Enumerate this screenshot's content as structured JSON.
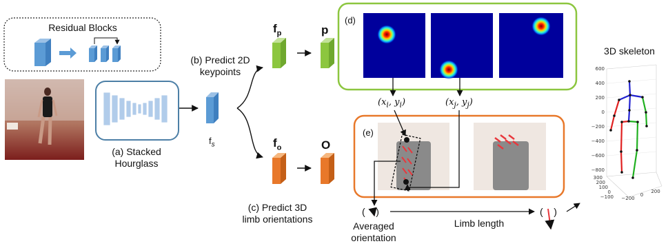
{
  "residual_blocks": {
    "title": "Residual Blocks"
  },
  "hourglass": {
    "label_line1": "(a) Stacked",
    "label_line2": "Hourglass"
  },
  "features": {
    "fs": "f",
    "fs_sub": "s",
    "fp": "f",
    "fp_sub": "p",
    "fo": "f",
    "fo_sub": "o"
  },
  "branches": {
    "keypoints_line1": "(b) Predict 2D",
    "keypoints_line2": "keypoints",
    "limb_line1": "(c) Predict 3D",
    "limb_line2": "limb orientations"
  },
  "outputs": {
    "p": "p",
    "o": "O"
  },
  "panels": {
    "d": "(d)",
    "e": "(e)"
  },
  "coords": {
    "i": "(x",
    "i_sub": "i",
    "i_rest": ", y",
    "j": "(x",
    "j_sub": "j",
    "j_rest": ", y"
  },
  "bottom": {
    "paren_left": "( ",
    "paren_right": " )",
    "averaged_line1": "Averaged",
    "averaged_line2": "orientation",
    "limb_length": "Limb length"
  },
  "skeleton": {
    "title": "3D skeleton",
    "z_ticks": [
      "600",
      "400",
      "200",
      "0",
      "−200",
      "−400",
      "−600",
      "−800"
    ],
    "x_ticks": [
      "−200",
      "0",
      "200"
    ],
    "y_ticks": [
      "300",
      "200",
      "100",
      "0",
      "−100"
    ]
  },
  "colors": {
    "green_box": "#8cc63f",
    "orange_box": "#e8782a",
    "block_blue": "#5b9bd5",
    "hourglass_blue": "#a9c7e8"
  }
}
